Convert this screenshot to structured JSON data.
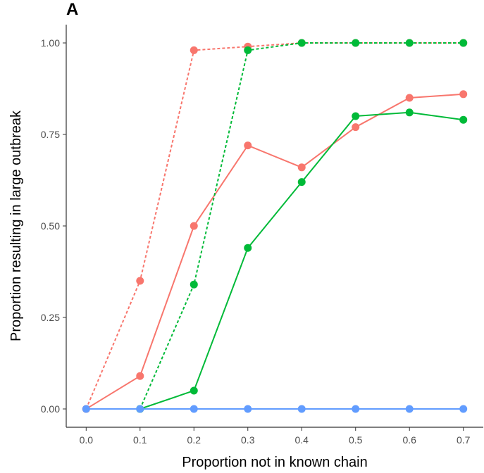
{
  "panel_label": "A",
  "chart_data": {
    "type": "line",
    "title": "",
    "xlabel": "Proportion not in known chain",
    "ylabel": "Proportion resulting in large outbreak",
    "x": [
      0.0,
      0.1,
      0.2,
      0.3,
      0.4,
      0.5,
      0.6,
      0.7
    ],
    "x_ticks": [
      "0.0",
      "0.1",
      "0.2",
      "0.3",
      "0.4",
      "0.5",
      "0.6",
      "0.7"
    ],
    "y_ticks": [
      "0.00",
      "0.25",
      "0.50",
      "0.75",
      "1.00"
    ],
    "xlim": [
      -0.037,
      0.737
    ],
    "ylim": [
      -0.05,
      1.05
    ],
    "grid": false,
    "legend": "none",
    "series": [
      {
        "color": "#F8766D",
        "linestyle": "dashed",
        "values": [
          0.0,
          0.35,
          0.98,
          0.99,
          1.0,
          1.0,
          1.0,
          1.0
        ]
      },
      {
        "color": "#F8766D",
        "linestyle": "solid",
        "values": [
          0.0,
          0.09,
          0.5,
          0.72,
          0.66,
          0.77,
          0.85,
          0.86
        ]
      },
      {
        "color": "#00BA38",
        "linestyle": "dashed",
        "values": [
          null,
          0.0,
          0.34,
          0.98,
          1.0,
          1.0,
          1.0,
          1.0
        ]
      },
      {
        "color": "#00BA38",
        "linestyle": "solid",
        "values": [
          null,
          0.0,
          0.05,
          0.44,
          0.62,
          0.8,
          0.81,
          0.79
        ]
      },
      {
        "color": "#619CFF",
        "linestyle": "solid",
        "values": [
          0.0,
          0.0,
          0.0,
          0.0,
          0.0,
          0.0,
          0.0,
          0.0
        ]
      }
    ]
  }
}
